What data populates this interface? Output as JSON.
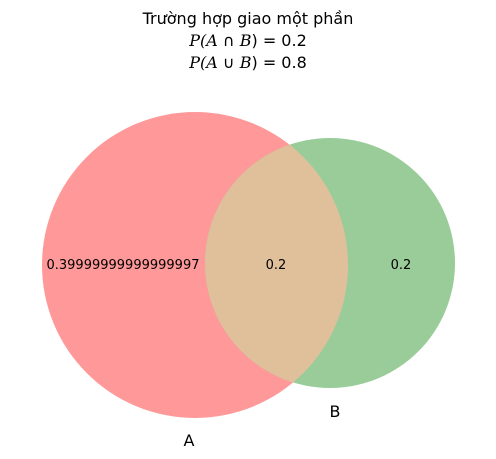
{
  "title": {
    "line1": "Trường hợp giao một phần",
    "line2_fn": "P(",
    "line2_a": "A",
    "line2_op": " ∩ ",
    "line2_b": "B",
    "line2_rest": ") = 0.2",
    "line3_fn": "P(",
    "line3_a": "A",
    "line3_op": " ∪ ",
    "line3_b": "B",
    "line3_rest": ") = 0.8"
  },
  "diagram": {
    "set_a_label": "A",
    "set_b_label": "B",
    "region_a_only": "0.39999999999999997",
    "region_intersection": "0.2",
    "region_b_only": "0.2",
    "colors": {
      "set_a": "#ff9999",
      "set_b": "#99cc99",
      "intersection": "#e0c09b"
    }
  }
}
